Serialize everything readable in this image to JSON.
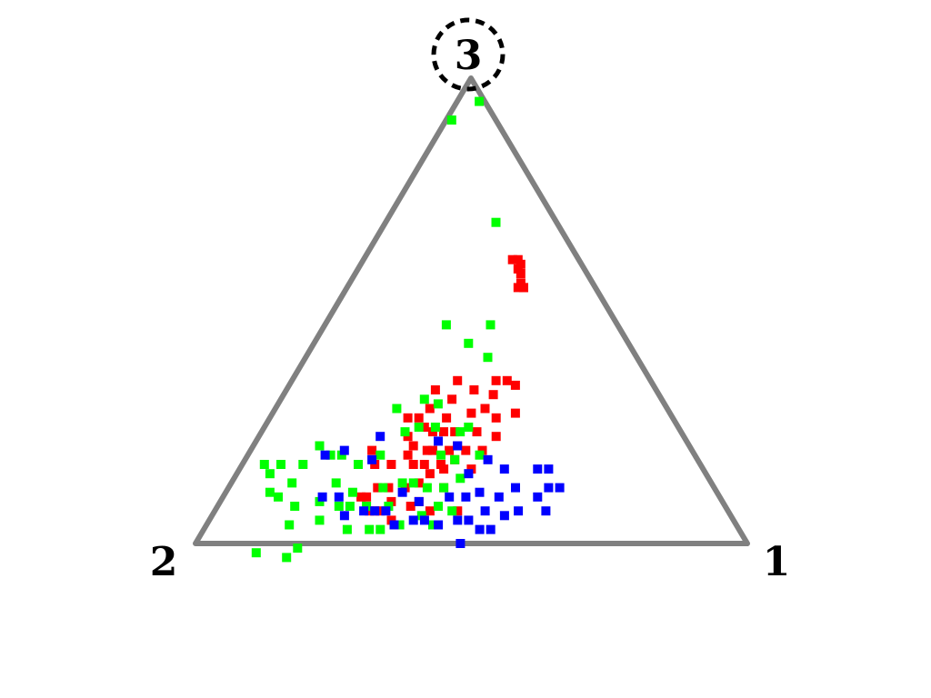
{
  "chart_data": {
    "type": "scatter",
    "subtype": "ternary",
    "vertex_labels": {
      "v1": "1",
      "v2": "2",
      "v3": "3"
    },
    "highlighted_vertex": "3",
    "colors": {
      "frame": "#808080",
      "red": "#ff0000",
      "green": "#00ff00",
      "blue": "#0000ff",
      "highlight_ring": "#000000"
    },
    "series": [
      {
        "color_key": "red",
        "points": [
          [
            0.3,
            0.12,
            0.58
          ],
          [
            0.32,
            0.13,
            0.55
          ],
          [
            0.29,
            0.11,
            0.6
          ],
          [
            0.31,
            0.13,
            0.56
          ],
          [
            0.28,
            0.11,
            0.61
          ],
          [
            0.31,
            0.14,
            0.55
          ],
          [
            0.32,
            0.13,
            0.55
          ],
          [
            0.29,
            0.12,
            0.59
          ],
          [
            0.27,
            0.12,
            0.61
          ],
          [
            0.41,
            0.25,
            0.34
          ],
          [
            0.44,
            0.28,
            0.28
          ],
          [
            0.39,
            0.26,
            0.35
          ],
          [
            0.37,
            0.28,
            0.35
          ],
          [
            0.38,
            0.3,
            0.32
          ],
          [
            0.41,
            0.32,
            0.27
          ],
          [
            0.43,
            0.34,
            0.23
          ],
          [
            0.38,
            0.33,
            0.29
          ],
          [
            0.34,
            0.33,
            0.33
          ],
          [
            0.3,
            0.35,
            0.35
          ],
          [
            0.36,
            0.36,
            0.28
          ],
          [
            0.39,
            0.37,
            0.24
          ],
          [
            0.42,
            0.38,
            0.2
          ],
          [
            0.31,
            0.38,
            0.31
          ],
          [
            0.27,
            0.4,
            0.33
          ],
          [
            0.32,
            0.41,
            0.27
          ],
          [
            0.35,
            0.41,
            0.24
          ],
          [
            0.37,
            0.42,
            0.21
          ],
          [
            0.39,
            0.41,
            0.2
          ],
          [
            0.42,
            0.42,
            0.16
          ],
          [
            0.28,
            0.43,
            0.29
          ],
          [
            0.33,
            0.43,
            0.24
          ],
          [
            0.31,
            0.45,
            0.24
          ],
          [
            0.29,
            0.46,
            0.25
          ],
          [
            0.27,
            0.46,
            0.27
          ],
          [
            0.38,
            0.44,
            0.18
          ],
          [
            0.36,
            0.44,
            0.2
          ],
          [
            0.37,
            0.47,
            0.16
          ],
          [
            0.33,
            0.47,
            0.2
          ],
          [
            0.25,
            0.48,
            0.27
          ],
          [
            0.32,
            0.48,
            0.2
          ],
          [
            0.36,
            0.47,
            0.17
          ],
          [
            0.27,
            0.5,
            0.23
          ],
          [
            0.29,
            0.5,
            0.21
          ],
          [
            0.35,
            0.5,
            0.15
          ],
          [
            0.33,
            0.5,
            0.17
          ],
          [
            0.39,
            0.49,
            0.12
          ],
          [
            0.44,
            0.49,
            0.07
          ],
          [
            0.31,
            0.52,
            0.17
          ],
          [
            0.29,
            0.52,
            0.19
          ],
          [
            0.34,
            0.53,
            0.13
          ],
          [
            0.36,
            0.55,
            0.09
          ],
          [
            0.39,
            0.54,
            0.07
          ],
          [
            0.32,
            0.56,
            0.12
          ],
          [
            0.27,
            0.56,
            0.17
          ],
          [
            0.35,
            0.57,
            0.08
          ],
          [
            0.22,
            0.58,
            0.2
          ],
          [
            0.24,
            0.59,
            0.17
          ],
          [
            0.29,
            0.59,
            0.12
          ],
          [
            0.31,
            0.6,
            0.09
          ],
          [
            0.27,
            0.61,
            0.12
          ],
          [
            0.33,
            0.62,
            0.05
          ],
          [
            0.3,
            0.63,
            0.07
          ],
          [
            0.26,
            0.64,
            0.1
          ],
          [
            0.29,
            0.64,
            0.07
          ],
          [
            0.25,
            0.65,
            0.1
          ],
          [
            0.28,
            0.65,
            0.07
          ]
        ]
      },
      {
        "color_key": "green",
        "points": [
          [
            0.04,
            0.01,
            0.95
          ],
          [
            0.01,
            0.08,
            0.91
          ],
          [
            0.2,
            0.11,
            0.69
          ],
          [
            0.3,
            0.23,
            0.47
          ],
          [
            0.33,
            0.27,
            0.4
          ],
          [
            0.28,
            0.29,
            0.43
          ],
          [
            0.22,
            0.31,
            0.47
          ],
          [
            0.37,
            0.38,
            0.25
          ],
          [
            0.42,
            0.39,
            0.19
          ],
          [
            0.36,
            0.4,
            0.24
          ],
          [
            0.29,
            0.41,
            0.3
          ],
          [
            0.26,
            0.43,
            0.31
          ],
          [
            0.31,
            0.44,
            0.25
          ],
          [
            0.38,
            0.44,
            0.18
          ],
          [
            0.41,
            0.45,
            0.14
          ],
          [
            0.35,
            0.46,
            0.19
          ],
          [
            0.28,
            0.47,
            0.25
          ],
          [
            0.22,
            0.49,
            0.29
          ],
          [
            0.26,
            0.5,
            0.24
          ],
          [
            0.39,
            0.49,
            0.12
          ],
          [
            0.43,
            0.5,
            0.07
          ],
          [
            0.4,
            0.52,
            0.08
          ],
          [
            0.36,
            0.52,
            0.12
          ],
          [
            0.33,
            0.54,
            0.13
          ],
          [
            0.31,
            0.56,
            0.13
          ],
          [
            0.38,
            0.56,
            0.06
          ],
          [
            0.41,
            0.55,
            0.04
          ],
          [
            0.24,
            0.57,
            0.19
          ],
          [
            0.28,
            0.6,
            0.12
          ],
          [
            0.31,
            0.61,
            0.08
          ],
          [
            0.35,
            0.61,
            0.04
          ],
          [
            0.21,
            0.62,
            0.17
          ],
          [
            0.17,
            0.64,
            0.19
          ],
          [
            0.15,
            0.66,
            0.19
          ],
          [
            0.19,
            0.68,
            0.13
          ],
          [
            0.12,
            0.67,
            0.21
          ],
          [
            0.22,
            0.7,
            0.08
          ],
          [
            0.11,
            0.72,
            0.17
          ],
          [
            0.06,
            0.79,
            0.15
          ],
          [
            0.04,
            0.79,
            0.17
          ],
          [
            0.19,
            0.82,
            -0.01
          ],
          [
            0.12,
            0.9,
            -0.02
          ],
          [
            0.18,
            0.85,
            -0.03
          ],
          [
            0.15,
            0.81,
            0.04
          ],
          [
            0.14,
            0.78,
            0.08
          ],
          [
            0.11,
            0.76,
            0.13
          ],
          [
            0.1,
            0.8,
            0.1
          ],
          [
            0.07,
            0.76,
            0.17
          ],
          [
            0.24,
            0.68,
            0.08
          ],
          [
            0.26,
            0.71,
            0.03
          ],
          [
            0.2,
            0.75,
            0.05
          ],
          [
            0.18,
            0.73,
            0.09
          ],
          [
            0.08,
            0.81,
            0.11
          ],
          [
            0.3,
            0.67,
            0.03
          ],
          [
            0.32,
            0.65,
            0.03
          ],
          [
            0.27,
            0.65,
            0.08
          ],
          [
            0.23,
            0.66,
            0.11
          ]
        ]
      },
      {
        "color_key": "blue",
        "points": [
          [
            0.23,
            0.59,
            0.18
          ],
          [
            0.17,
            0.63,
            0.2
          ],
          [
            0.14,
            0.67,
            0.19
          ],
          [
            0.22,
            0.55,
            0.23
          ],
          [
            0.37,
            0.42,
            0.21
          ],
          [
            0.33,
            0.45,
            0.22
          ],
          [
            0.18,
            0.72,
            0.1
          ],
          [
            0.24,
            0.7,
            0.06
          ],
          [
            0.27,
            0.66,
            0.07
          ],
          [
            0.29,
            0.64,
            0.07
          ],
          [
            0.21,
            0.69,
            0.1
          ],
          [
            0.31,
            0.62,
            0.07
          ],
          [
            0.34,
            0.62,
            0.04
          ],
          [
            0.37,
            0.58,
            0.05
          ],
          [
            0.39,
            0.56,
            0.05
          ],
          [
            0.42,
            0.54,
            0.04
          ],
          [
            0.36,
            0.55,
            0.09
          ],
          [
            0.32,
            0.57,
            0.11
          ],
          [
            0.45,
            0.5,
            0.05
          ],
          [
            0.47,
            0.48,
            0.05
          ],
          [
            0.44,
            0.46,
            0.1
          ],
          [
            0.41,
            0.49,
            0.1
          ],
          [
            0.48,
            0.52,
            0.0
          ],
          [
            0.5,
            0.47,
            0.03
          ],
          [
            0.52,
            0.45,
            0.03
          ],
          [
            0.49,
            0.44,
            0.07
          ],
          [
            0.46,
            0.43,
            0.11
          ],
          [
            0.42,
            0.43,
            0.15
          ],
          [
            0.53,
            0.41,
            0.06
          ],
          [
            0.5,
            0.4,
            0.1
          ],
          [
            0.55,
            0.38,
            0.07
          ],
          [
            0.52,
            0.36,
            0.12
          ],
          [
            0.57,
            0.33,
            0.1
          ],
          [
            0.6,
            0.28,
            0.12
          ],
          [
            0.54,
            0.3,
            0.16
          ],
          [
            0.6,
            0.33,
            0.07
          ],
          [
            0.48,
            0.36,
            0.16
          ],
          [
            0.58,
            0.3,
            0.12
          ],
          [
            0.56,
            0.28,
            0.16
          ],
          [
            0.44,
            0.38,
            0.18
          ]
        ]
      }
    ]
  }
}
